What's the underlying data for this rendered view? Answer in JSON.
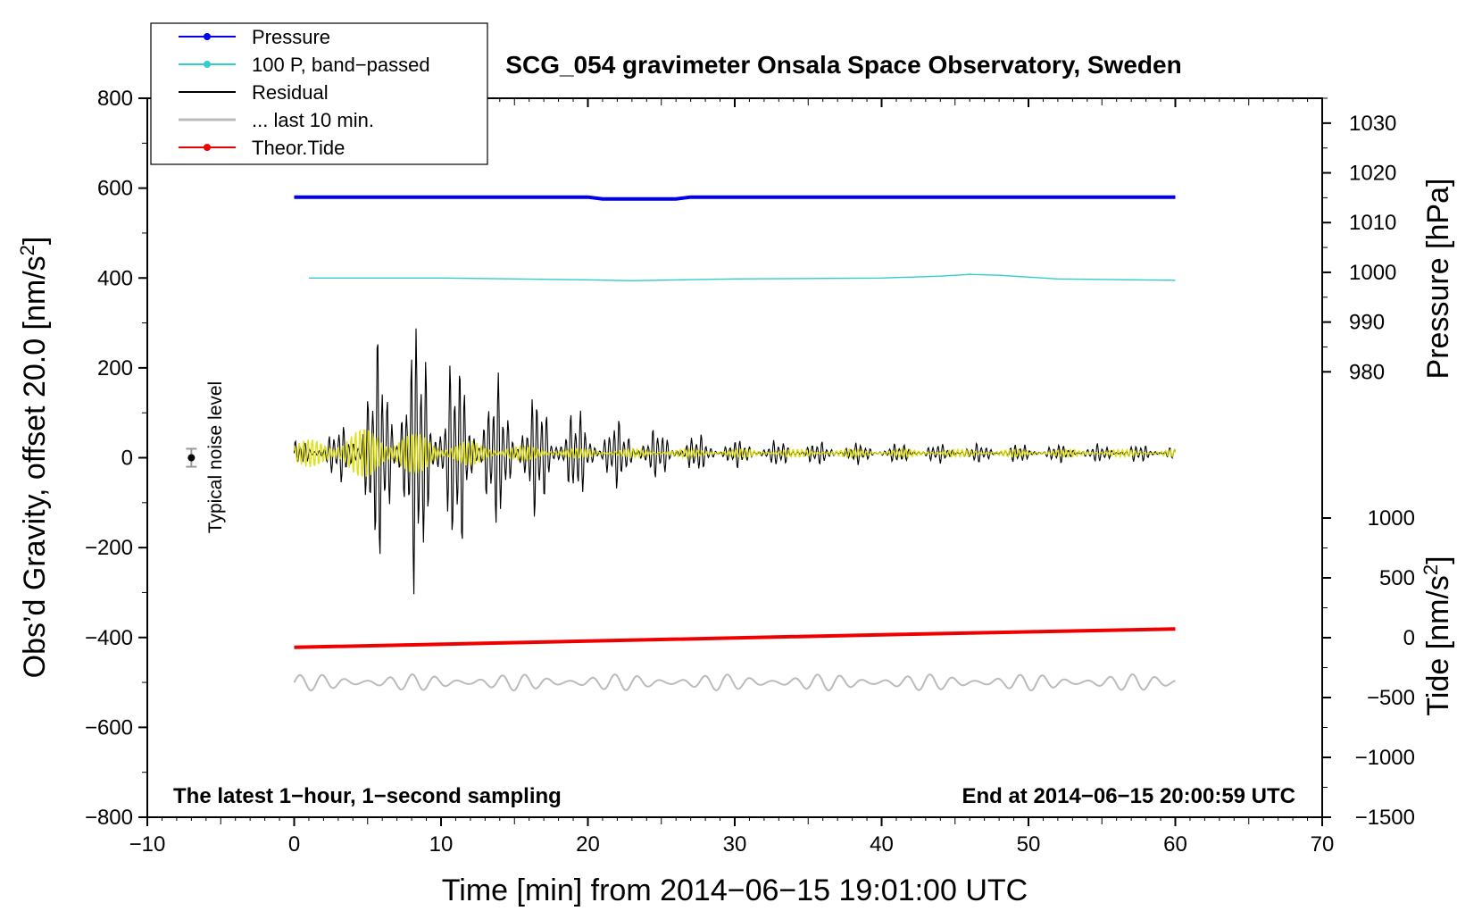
{
  "chart_data": {
    "type": "line",
    "title": "SCG_054 gravimeter Onsala Space Observatory, Sweden",
    "xlabel": "Time [min] from 2014−06−15 19:01:00 UTC",
    "ylabel_left": "Obs'd Gravity, offset 20.0 [nm/s²]",
    "ylabel_pressure": "Pressure [hPa]",
    "ylabel_tide": "Tide [nm/s²]",
    "xlim": [
      -10,
      70
    ],
    "ylim": [
      -800,
      800
    ],
    "pressure_ylim": [
      970,
      1035
    ],
    "tide_ylim": [
      -1500,
      1000
    ],
    "x_ticks": [
      "−10",
      "0",
      "10",
      "20",
      "30",
      "40",
      "50",
      "60",
      "70"
    ],
    "y_ticks": [
      "−800",
      "−600",
      "−400",
      "−200",
      "0",
      "200",
      "400",
      "600",
      "800"
    ],
    "pressure_ticks": [
      "980",
      "990",
      "1000",
      "1010",
      "1020",
      "1030"
    ],
    "tide_ticks": [
      "−1500",
      "−1000",
      "−500",
      "0",
      "500",
      "1000"
    ],
    "legend": [
      {
        "label": "Pressure",
        "color": "#0000ee",
        "marker": true
      },
      {
        "label": "100 P, band−passed",
        "color": "#33cccc",
        "marker": true
      },
      {
        "label": "Residual",
        "color": "#000000",
        "marker": false
      },
      {
        "label": "... last 10 min.",
        "color": "#bbbbbb",
        "marker": false
      },
      {
        "label": "Theor.Tide",
        "color": "#ee0000",
        "marker": true
      }
    ],
    "noise_level_label": "Typical noise level",
    "note_left": "The latest 1−hour, 1−second sampling",
    "note_right": "End at 2014−06−15 20:00:59 UTC",
    "series": [
      {
        "name": "Pressure",
        "color": "#0000ee",
        "axis": "left",
        "x": [
          0,
          20,
          21,
          26,
          27,
          60
        ],
        "y": [
          580,
          580,
          576,
          576,
          580,
          580
        ]
      },
      {
        "name": "100 P, band−passed",
        "color": "#33cccc",
        "axis": "left",
        "x": [
          1,
          10,
          20,
          23,
          30,
          40,
          44,
          46,
          48,
          52,
          60
        ],
        "y": [
          400,
          400,
          396,
          394,
          398,
          400,
          404,
          408,
          406,
          398,
          395
        ]
      },
      {
        "name": "Theor.Tide",
        "color": "#ee0000",
        "axis": "left",
        "x": [
          0,
          20,
          40,
          60
        ],
        "y": [
          -422,
          -408,
          -394,
          -381
        ]
      },
      {
        "name": "Residual",
        "color": "#000000",
        "axis": "left",
        "x_range": [
          0,
          60
        ],
        "baseline": 10,
        "envelope_x": [
          0,
          3,
          6,
          7,
          9,
          11,
          14,
          17,
          20,
          25,
          30,
          40,
          60
        ],
        "envelope_y": [
          30,
          60,
          300,
          340,
          330,
          250,
          180,
          150,
          100,
          60,
          35,
          25,
          22
        ]
      },
      {
        "name": "... last 10 min.",
        "color": "#bbbbbb",
        "axis": "left",
        "x_range": [
          0,
          60
        ],
        "baseline": -500,
        "amplitude": 18
      },
      {
        "name": "",
        "color": "#dddd00",
        "axis": "left",
        "x_range": [
          0,
          60
        ],
        "baseline": 10,
        "envelope_x": [
          0,
          3,
          6,
          8,
          10,
          14,
          20,
          60
        ],
        "envelope_y": [
          25,
          45,
          70,
          50,
          35,
          20,
          10,
          8
        ]
      }
    ],
    "noise_point": {
      "x": -7,
      "y": 0,
      "err": 20
    }
  }
}
